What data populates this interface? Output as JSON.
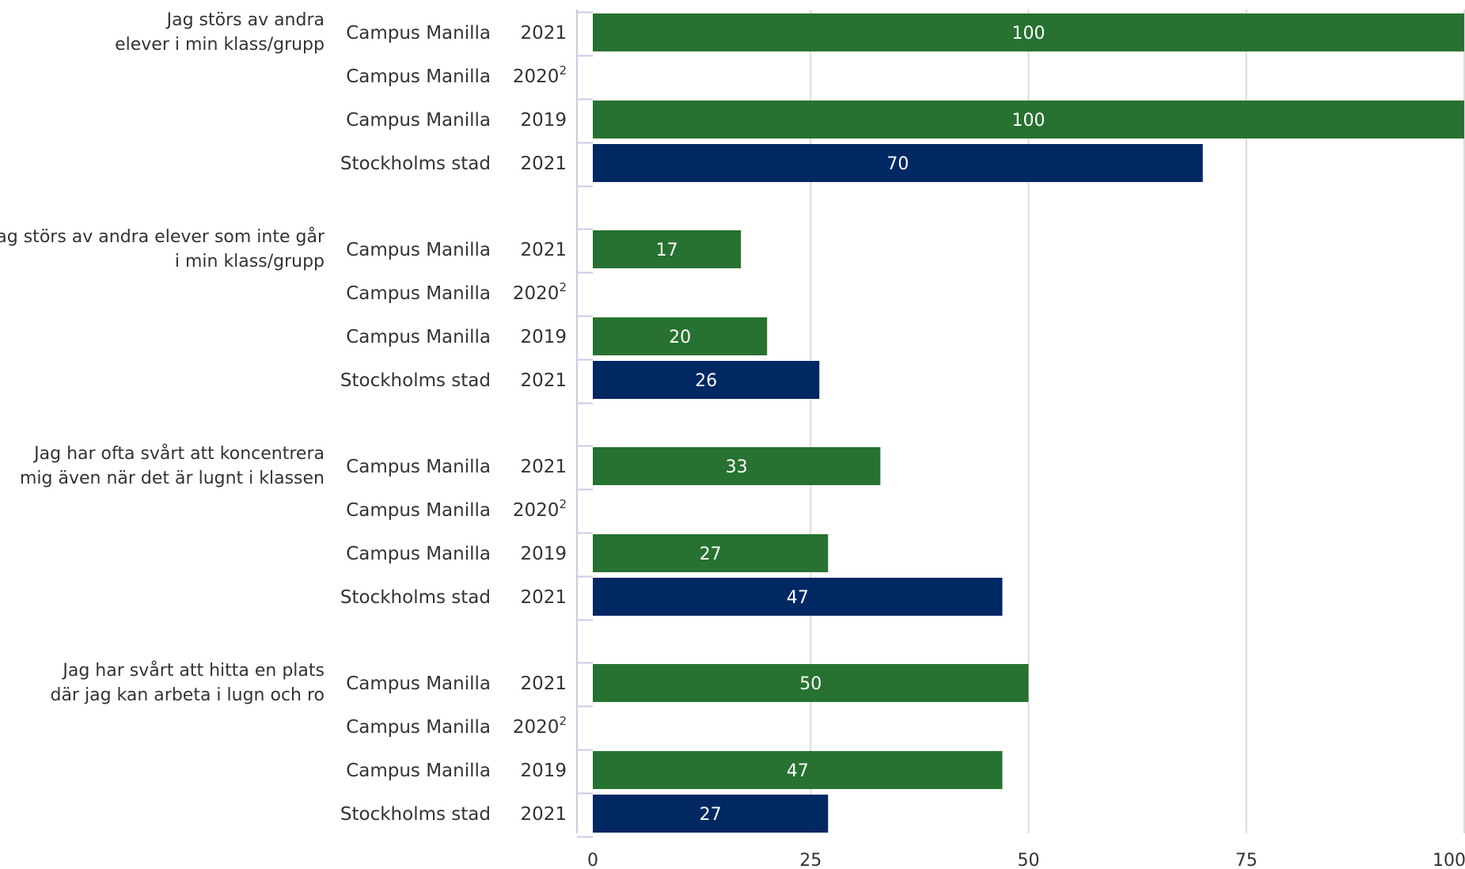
{
  "chart_data": {
    "type": "bar",
    "orientation": "horizontal",
    "xlim": [
      0,
      100
    ],
    "x_ticks": [
      "0",
      "25",
      "50",
      "75",
      "100"
    ],
    "grid": true,
    "colors": {
      "Campus Manilla": "#277230",
      "Stockholms stad": "#002863"
    },
    "groups": [
      {
        "question": "Jag störs av andra elever i min klass/grupp",
        "question_lines": [
          "Jag störs av andra",
          "elever i min klass/grupp"
        ],
        "rows": [
          {
            "unit": "Campus Manilla",
            "year": "2021",
            "note": "",
            "value": 100
          },
          {
            "unit": "Campus Manilla",
            "year": "2020",
            "note": "2",
            "value": null
          },
          {
            "unit": "Campus Manilla",
            "year": "2019",
            "note": "",
            "value": 100
          },
          {
            "unit": "Stockholms stad",
            "year": "2021",
            "note": "",
            "value": 70
          }
        ]
      },
      {
        "question": "Jag störs av andra elever som inte går i min klass/grupp",
        "question_lines": [
          "Jag störs av andra elever som inte går",
          "i min klass/grupp"
        ],
        "rows": [
          {
            "unit": "Campus Manilla",
            "year": "2021",
            "note": "",
            "value": 17
          },
          {
            "unit": "Campus Manilla",
            "year": "2020",
            "note": "2",
            "value": null
          },
          {
            "unit": "Campus Manilla",
            "year": "2019",
            "note": "",
            "value": 20
          },
          {
            "unit": "Stockholms stad",
            "year": "2021",
            "note": "",
            "value": 26
          }
        ]
      },
      {
        "question": "Jag har ofta svårt att koncentrera mig även när det är lugnt i klassen",
        "question_lines": [
          "Jag har ofta svårt att koncentrera",
          "mig även när det är lugnt i klassen"
        ],
        "rows": [
          {
            "unit": "Campus Manilla",
            "year": "2021",
            "note": "",
            "value": 33
          },
          {
            "unit": "Campus Manilla",
            "year": "2020",
            "note": "2",
            "value": null
          },
          {
            "unit": "Campus Manilla",
            "year": "2019",
            "note": "",
            "value": 27
          },
          {
            "unit": "Stockholms stad",
            "year": "2021",
            "note": "",
            "value": 47
          }
        ]
      },
      {
        "question": "Jag har svårt att hitta en plats där jag kan arbeta i lugn och ro",
        "question_lines": [
          "Jag har svårt att hitta en plats",
          "där jag kan arbeta i lugn och ro"
        ],
        "rows": [
          {
            "unit": "Campus Manilla",
            "year": "2021",
            "note": "",
            "value": 50
          },
          {
            "unit": "Campus Manilla",
            "year": "2020",
            "note": "2",
            "value": null
          },
          {
            "unit": "Campus Manilla",
            "year": "2019",
            "note": "",
            "value": 47
          },
          {
            "unit": "Stockholms stad",
            "year": "2021",
            "note": "",
            "value": 27
          }
        ]
      }
    ]
  }
}
